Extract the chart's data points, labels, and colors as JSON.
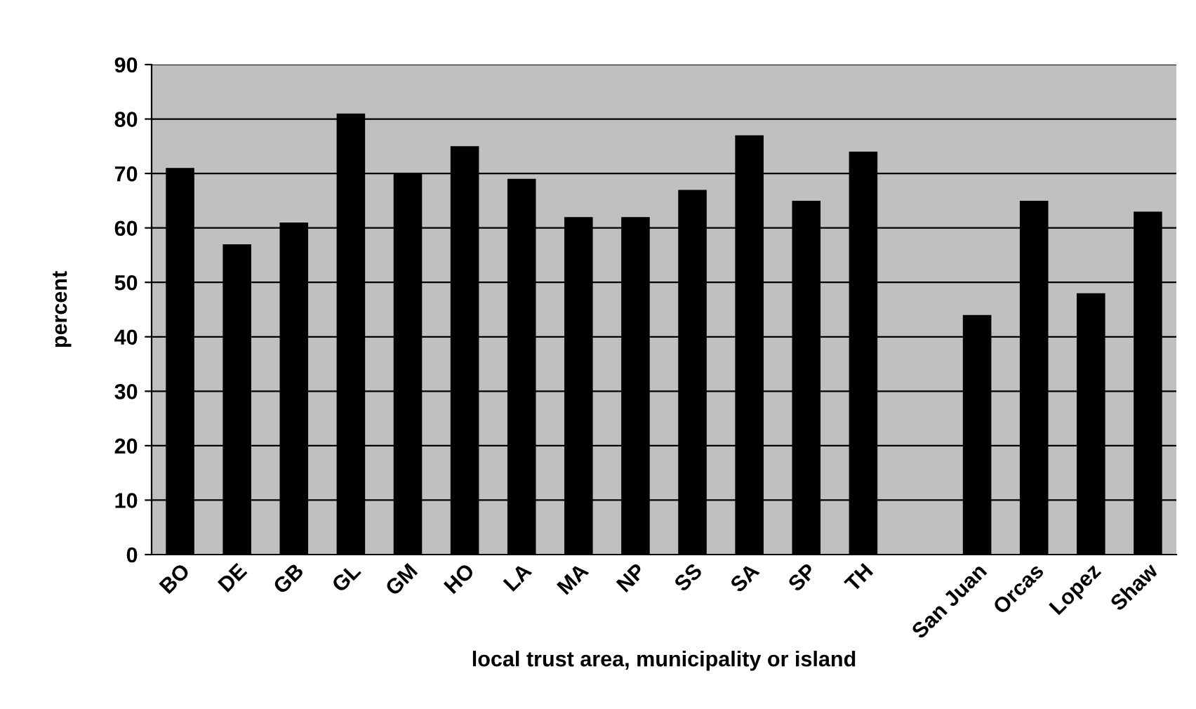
{
  "chart_data": {
    "type": "bar",
    "xlabel": "local trust area, municipality or island",
    "ylabel": "percent",
    "categories": [
      "BO",
      "DE",
      "GB",
      "GL",
      "GM",
      "HO",
      "LA",
      "MA",
      "NP",
      "SS",
      "SA",
      "SP",
      "TH",
      null,
      "San Juan",
      "Orcas",
      "Lopez",
      "Shaw"
    ],
    "values": [
      71,
      57,
      61,
      81,
      70,
      75,
      69,
      62,
      62,
      67,
      77,
      65,
      74,
      null,
      44,
      65,
      48,
      63
    ],
    "color": "#000000",
    "ylim": [
      0,
      90
    ],
    "yticks": [
      0,
      10,
      20,
      30,
      40,
      50,
      60,
      70,
      80,
      90
    ],
    "grid": "y",
    "legend": false
  }
}
